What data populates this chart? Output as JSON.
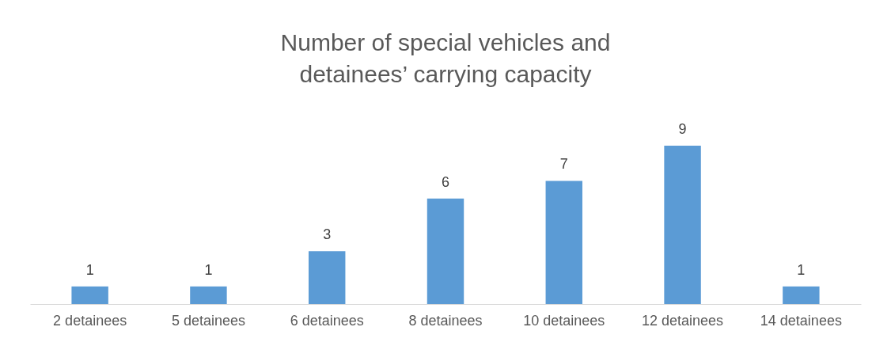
{
  "chart_data": {
    "type": "bar",
    "title": "Number of special vehicles and detainees’ carrying capacity",
    "categories": [
      "2 detainees",
      "5 detainees",
      "6 detainees",
      "8 detainees",
      "10 detainees",
      "12 detainees",
      "14 detainees"
    ],
    "values": [
      1,
      1,
      3,
      6,
      7,
      9,
      1
    ],
    "color": "#5b9bd5",
    "data_labels": true
  }
}
